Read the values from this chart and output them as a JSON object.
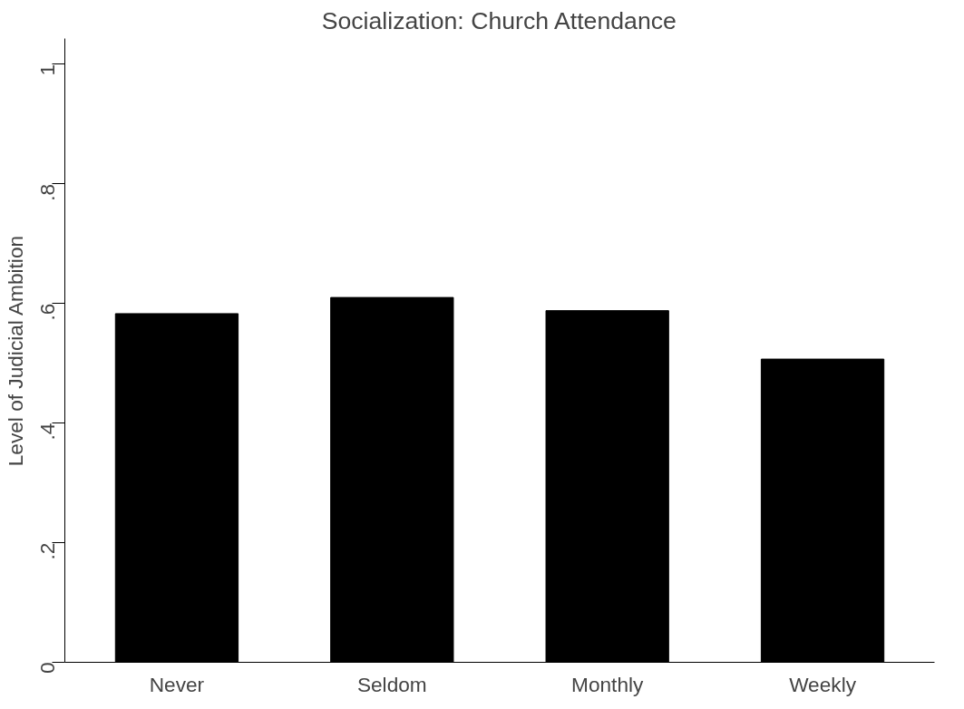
{
  "chart_data": {
    "type": "bar",
    "title": "Socialization: Church Attendance",
    "ylabel": "Level of Judicial Ambition",
    "categories": [
      "Never",
      "Seldom",
      "Monthly",
      "Weekly"
    ],
    "values": [
      0.583,
      0.61,
      0.588,
      0.507
    ],
    "color": "#000000",
    "ylim": [
      0,
      1.043
    ],
    "yticks": [
      0,
      {
        "value": 0.2,
        "label": ".2"
      },
      {
        "value": 0.4,
        "label": ".4"
      },
      {
        "value": 0.6,
        "label": ".6"
      },
      {
        "value": 0.8,
        "label": ".8"
      },
      1
    ],
    "grid": false
  }
}
